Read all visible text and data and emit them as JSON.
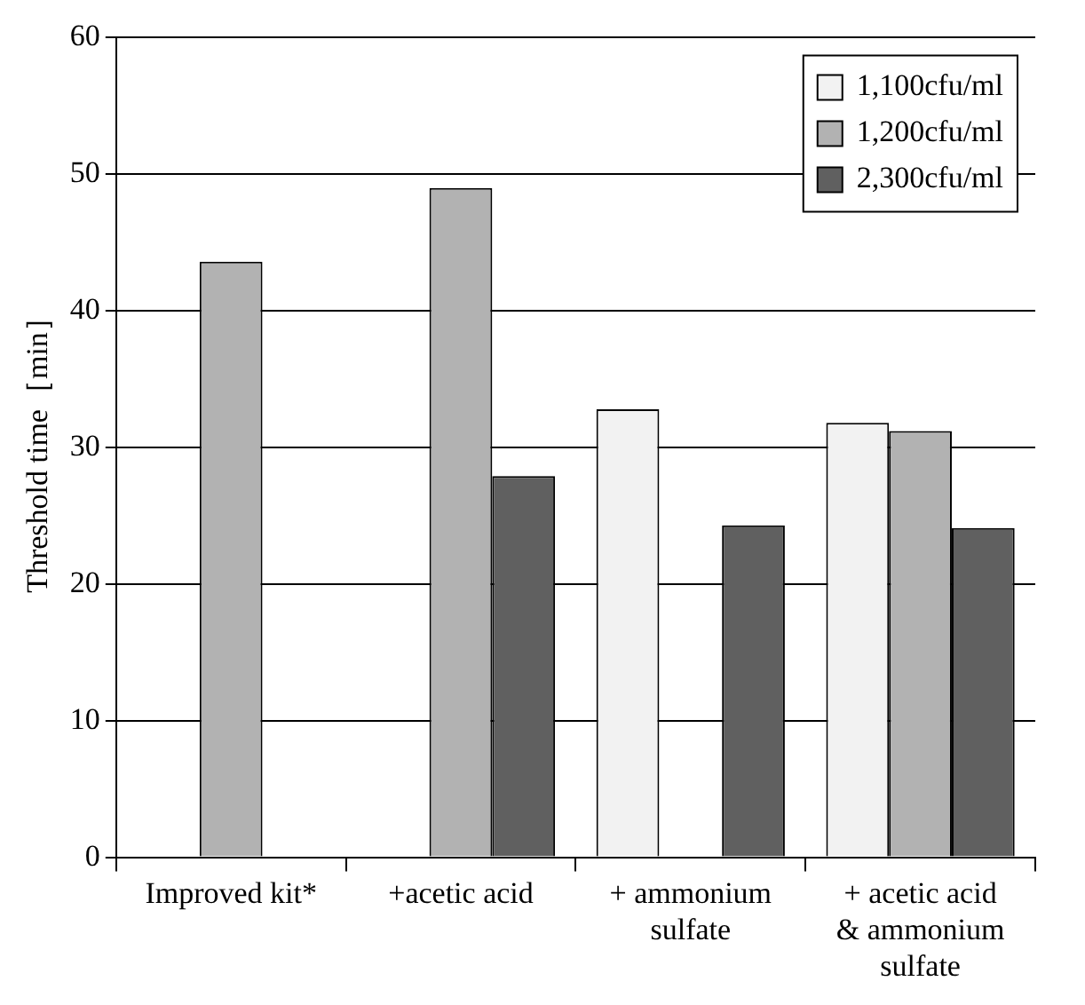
{
  "chart_data": {
    "type": "bar",
    "ylabel": "Threshold time［min］",
    "categories": [
      "Improved kit*",
      "+acetic acid",
      "+ ammonium sulfate",
      "+ acetic acid & ammonium sulfate"
    ],
    "series": [
      {
        "name": "1,100cfu/ml",
        "color": "#f2f2f2",
        "values": [
          null,
          null,
          32.8,
          31.8
        ]
      },
      {
        "name": "1,200cfu/ml",
        "color": "#b2b2b2",
        "values": [
          43.6,
          49,
          null,
          31.2
        ]
      },
      {
        "name": "2,300cfu/ml",
        "color": "#606060",
        "values": [
          null,
          27.9,
          24.3,
          24.1
        ]
      }
    ],
    "ylim": [
      0,
      60
    ],
    "yticks": [
      0,
      10,
      20,
      30,
      40,
      50,
      60
    ],
    "grid": "y",
    "legend": "top right"
  }
}
